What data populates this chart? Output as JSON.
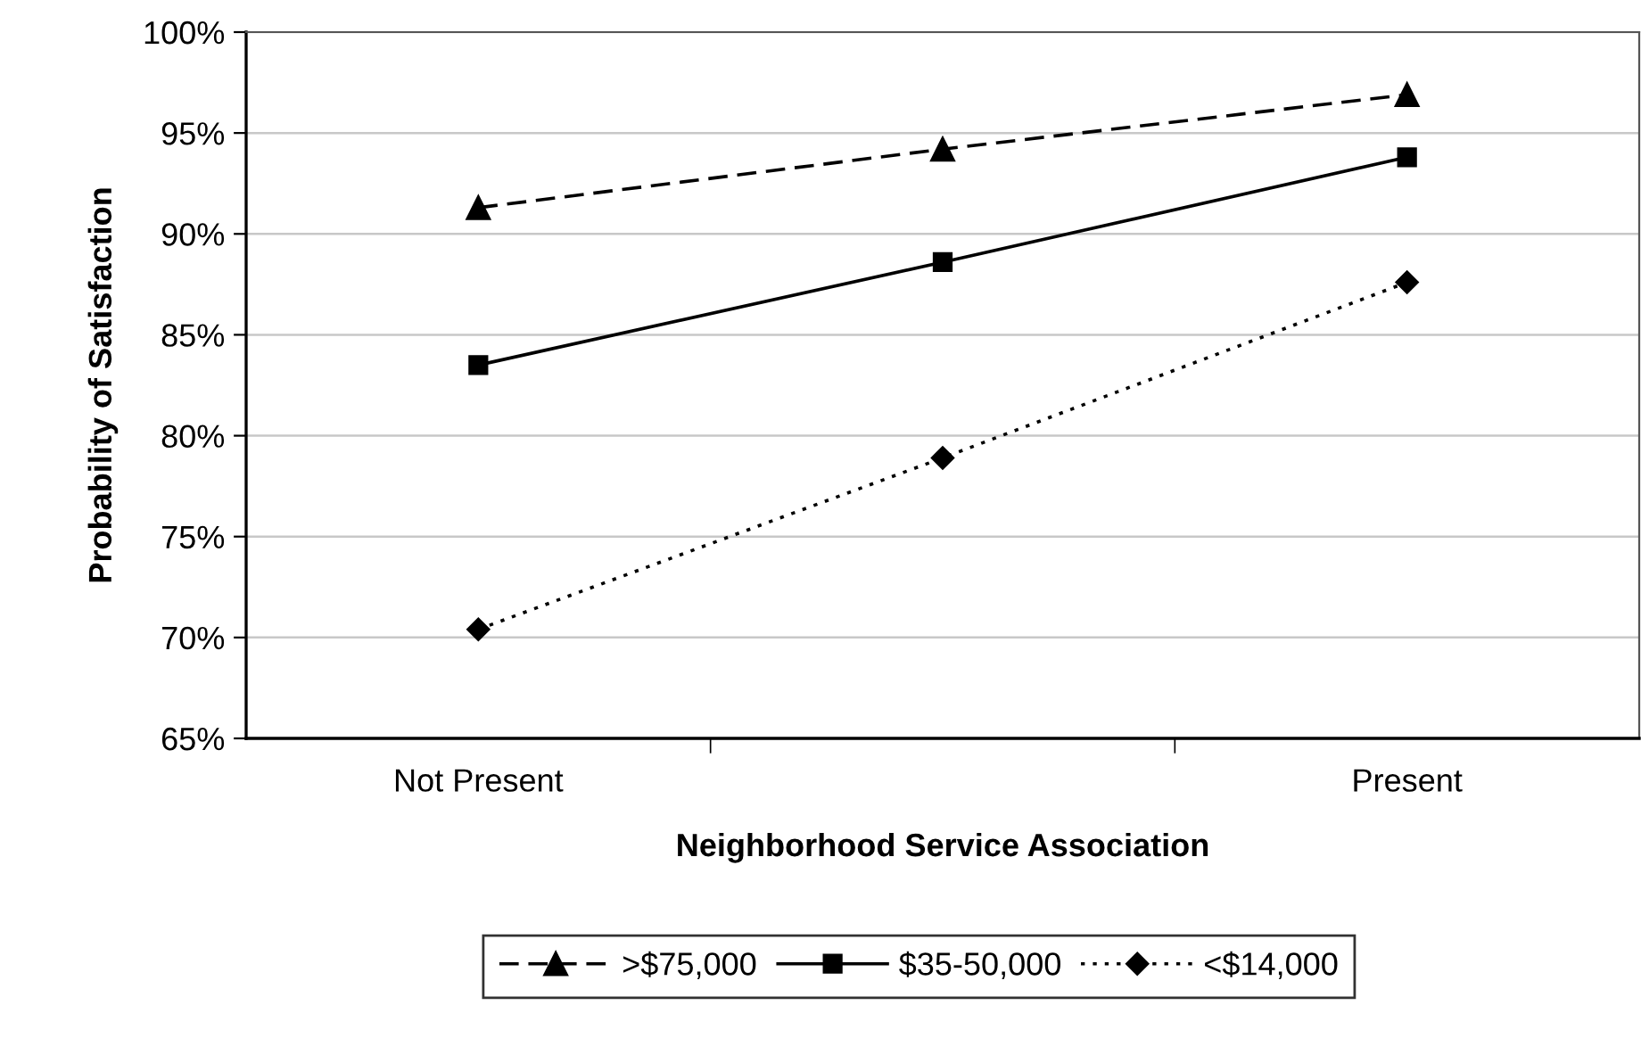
{
  "chart_data": {
    "type": "line",
    "xlabel": "Neighborhood Service Association",
    "ylabel": "Probability of Satisfaction",
    "categories": [
      "Not Present",
      null,
      "Present"
    ],
    "series": [
      {
        "name": ">$75,000",
        "color": "#000000",
        "values": [
          91.3,
          94.2,
          96.9
        ],
        "marker": "triangle",
        "line_style": "dashed"
      },
      {
        "name": "$35-50,000",
        "color": "#000000",
        "values": [
          83.5,
          88.6,
          93.8
        ],
        "marker": "square",
        "line_style": "solid"
      },
      {
        "name": "<$14,000",
        "color": "#000000",
        "values": [
          70.4,
          78.9,
          87.6
        ],
        "marker": "diamond",
        "line_style": "dotted"
      }
    ],
    "ylim": [
      65,
      100
    ],
    "yticks": [
      {
        "value": 65,
        "label": "65%"
      },
      {
        "value": 70,
        "label": "70%"
      },
      {
        "value": 75,
        "label": "75%"
      },
      {
        "value": 80,
        "label": "80%"
      },
      {
        "value": 85,
        "label": "85%"
      },
      {
        "value": 90,
        "label": "90%"
      },
      {
        "value": 95,
        "label": "95%"
      },
      {
        "value": 100,
        "label": "100%"
      }
    ],
    "grid": "y",
    "legend": "bottom"
  }
}
